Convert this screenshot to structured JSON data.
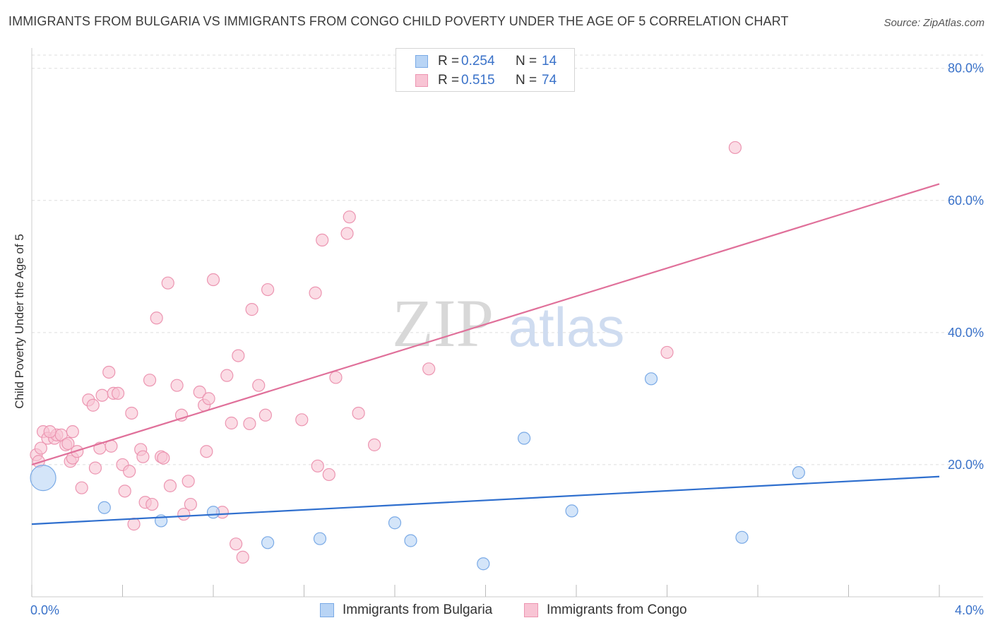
{
  "title": "IMMIGRANTS FROM BULGARIA VS IMMIGRANTS FROM CONGO CHILD POVERTY UNDER THE AGE OF 5 CORRELATION CHART",
  "source": "Source: ZipAtlas.com",
  "watermark": {
    "zip": "ZIP",
    "atlas": "atlas"
  },
  "legend_top": {
    "rows": [
      {
        "r_label": "R =",
        "r_value": "0.254",
        "n_label": "N =",
        "n_value": "14"
      },
      {
        "r_label": "R =",
        "r_value": "0.515",
        "n_label": "N =",
        "n_value": "74"
      }
    ]
  },
  "legend_bottom": {
    "items": [
      {
        "label": "Immigrants from Bulgaria"
      },
      {
        "label": "Immigrants from Congo"
      }
    ]
  },
  "colors": {
    "bulgaria_fill": "#b8d4f5",
    "bulgaria_stroke": "#7aaae6",
    "bulgaria_line": "#2f6fce",
    "congo_fill": "#f8c4d4",
    "congo_stroke": "#ec95b1",
    "congo_line": "#e0709a",
    "tick_text": "#3a72c9",
    "grid": "#dddddd"
  },
  "chart_data": {
    "type": "scatter",
    "title": "IMMIGRANTS FROM BULGARIA VS IMMIGRANTS FROM CONGO CHILD POVERTY UNDER THE AGE OF 5 CORRELATION CHART",
    "xlabel": "",
    "ylabel": "Child Poverty Under the Age of 5",
    "xlim": [
      0,
      4.0
    ],
    "ylim": [
      0,
      82
    ],
    "x_tick_labels": [
      "0.0%",
      "4.0%"
    ],
    "y_ticks": [
      20,
      40,
      60,
      80
    ],
    "y_tick_labels": [
      "20.0%",
      "40.0%",
      "60.0%",
      "80.0%"
    ],
    "grid": true,
    "legend_position": "top-center",
    "series": [
      {
        "name": "Immigrants from Bulgaria",
        "r": 0.254,
        "n": 14,
        "trend": {
          "x": [
            0,
            4.0
          ],
          "y": [
            11.0,
            18.2
          ]
        },
        "points": [
          {
            "x": 0.05,
            "y": 18.0,
            "big": true
          },
          {
            "x": 0.32,
            "y": 13.5
          },
          {
            "x": 0.57,
            "y": 11.5
          },
          {
            "x": 0.8,
            "y": 12.8
          },
          {
            "x": 1.04,
            "y": 8.2
          },
          {
            "x": 1.27,
            "y": 8.8
          },
          {
            "x": 1.6,
            "y": 11.2
          },
          {
            "x": 1.67,
            "y": 8.5
          },
          {
            "x": 1.99,
            "y": 5.0
          },
          {
            "x": 2.17,
            "y": 24.0
          },
          {
            "x": 2.38,
            "y": 13.0
          },
          {
            "x": 2.73,
            "y": 33.0
          },
          {
            "x": 3.13,
            "y": 9.0
          },
          {
            "x": 3.38,
            "y": 18.8
          }
        ]
      },
      {
        "name": "Immigrants from Congo",
        "r": 0.515,
        "n": 74,
        "trend": {
          "x": [
            0,
            4.0
          ],
          "y": [
            20.0,
            62.5
          ]
        },
        "points": [
          {
            "x": 0.02,
            "y": 21.5
          },
          {
            "x": 0.03,
            "y": 20.5
          },
          {
            "x": 0.04,
            "y": 22.5
          },
          {
            "x": 0.05,
            "y": 25.0
          },
          {
            "x": 0.07,
            "y": 24.0
          },
          {
            "x": 0.1,
            "y": 24.0
          },
          {
            "x": 0.11,
            "y": 24.5
          },
          {
            "x": 0.13,
            "y": 24.5
          },
          {
            "x": 0.15,
            "y": 23.0
          },
          {
            "x": 0.16,
            "y": 23.2
          },
          {
            "x": 0.17,
            "y": 20.5
          },
          {
            "x": 0.18,
            "y": 21.0
          },
          {
            "x": 0.18,
            "y": 25.0
          },
          {
            "x": 0.2,
            "y": 22.0
          },
          {
            "x": 0.22,
            "y": 16.5
          },
          {
            "x": 0.25,
            "y": 29.8
          },
          {
            "x": 0.27,
            "y": 29.0
          },
          {
            "x": 0.28,
            "y": 19.5
          },
          {
            "x": 0.3,
            "y": 22.5
          },
          {
            "x": 0.31,
            "y": 30.5
          },
          {
            "x": 0.34,
            "y": 34.0
          },
          {
            "x": 0.35,
            "y": 22.8
          },
          {
            "x": 0.36,
            "y": 30.8
          },
          {
            "x": 0.38,
            "y": 30.8
          },
          {
            "x": 0.4,
            "y": 20.0
          },
          {
            "x": 0.41,
            "y": 16.0
          },
          {
            "x": 0.43,
            "y": 19.0
          },
          {
            "x": 0.44,
            "y": 27.8
          },
          {
            "x": 0.45,
            "y": 11.0
          },
          {
            "x": 0.48,
            "y": 22.3
          },
          {
            "x": 0.49,
            "y": 21.2
          },
          {
            "x": 0.5,
            "y": 14.3
          },
          {
            "x": 0.52,
            "y": 32.8
          },
          {
            "x": 0.53,
            "y": 14.0
          },
          {
            "x": 0.55,
            "y": 42.2
          },
          {
            "x": 0.57,
            "y": 21.2
          },
          {
            "x": 0.58,
            "y": 21.0
          },
          {
            "x": 0.6,
            "y": 47.5
          },
          {
            "x": 0.61,
            "y": 16.8
          },
          {
            "x": 0.64,
            "y": 32.0
          },
          {
            "x": 0.66,
            "y": 27.5
          },
          {
            "x": 0.67,
            "y": 12.5
          },
          {
            "x": 0.69,
            "y": 17.5
          },
          {
            "x": 0.7,
            "y": 14.0
          },
          {
            "x": 0.74,
            "y": 31.0
          },
          {
            "x": 0.76,
            "y": 29.0
          },
          {
            "x": 0.77,
            "y": 22.0
          },
          {
            "x": 0.78,
            "y": 30.0
          },
          {
            "x": 0.8,
            "y": 48.0
          },
          {
            "x": 0.84,
            "y": 12.8
          },
          {
            "x": 0.86,
            "y": 33.5
          },
          {
            "x": 0.88,
            "y": 26.3
          },
          {
            "x": 0.9,
            "y": 8.0
          },
          {
            "x": 0.91,
            "y": 36.5
          },
          {
            "x": 0.93,
            "y": 6.0
          },
          {
            "x": 0.96,
            "y": 26.2
          },
          {
            "x": 0.97,
            "y": 43.5
          },
          {
            "x": 1.0,
            "y": 32.0
          },
          {
            "x": 1.03,
            "y": 27.5
          },
          {
            "x": 1.04,
            "y": 46.5
          },
          {
            "x": 1.19,
            "y": 26.8
          },
          {
            "x": 1.25,
            "y": 46.0
          },
          {
            "x": 1.26,
            "y": 19.8
          },
          {
            "x": 1.28,
            "y": 54.0
          },
          {
            "x": 1.31,
            "y": 18.5
          },
          {
            "x": 1.34,
            "y": 33.2
          },
          {
            "x": 1.39,
            "y": 55.0
          },
          {
            "x": 1.4,
            "y": 57.5
          },
          {
            "x": 1.44,
            "y": 27.8
          },
          {
            "x": 1.51,
            "y": 23.0
          },
          {
            "x": 1.75,
            "y": 34.5
          },
          {
            "x": 2.8,
            "y": 37.0
          },
          {
            "x": 3.1,
            "y": 68.0
          },
          {
            "x": 0.08,
            "y": 25.0
          }
        ]
      }
    ]
  }
}
